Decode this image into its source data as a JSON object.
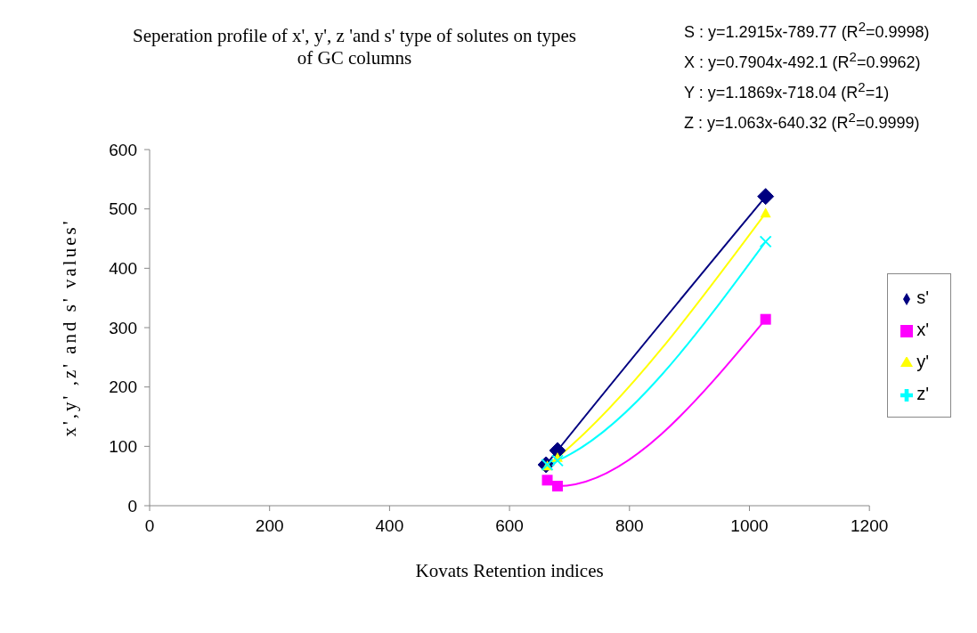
{
  "chart_data": {
    "type": "line",
    "title": "Seperation profile of x', y', z 'and s' type of solutes on types of GC columns",
    "xlabel": "Kovats Retention indices",
    "ylabel": "x',y' ,z' and s' values'",
    "xlim": [
      0,
      1200
    ],
    "xticks": [
      0,
      200,
      400,
      600,
      800,
      1000,
      1200
    ],
    "ylim": [
      0,
      600
    ],
    "yticks": [
      0,
      100,
      200,
      300,
      400,
      500,
      600
    ],
    "grid": false,
    "legend": "right",
    "series": [
      {
        "name": "s'",
        "color": "#000080",
        "marker": "diamond",
        "x": [
          661,
          680,
          1027
        ],
        "values": [
          69,
          93,
          521
        ]
      },
      {
        "name": "x'",
        "color": "#ff00ff",
        "marker": "square",
        "x": [
          663,
          680,
          1027
        ],
        "values": [
          43,
          33,
          314
        ]
      },
      {
        "name": "y'",
        "color": "#ffff00",
        "marker": "triangle",
        "x": [
          663,
          680,
          1027
        ],
        "values": [
          67,
          81,
          493
        ]
      },
      {
        "name": "z'",
        "color": "#00ffff",
        "marker": "cross",
        "x": [
          663,
          680,
          1027
        ],
        "values": [
          69,
          76,
          445
        ]
      }
    ],
    "annotations": [
      "S : y=1.2915x-789.77 (R$^{2}$=0.9998)",
      "X : y=0.7904x-492.1 (R$^{2}$=0.9962)",
      "Y : y=1.1869x-718.04 (R$^{2}$=1)",
      "Z : y=1.063x-640.32 (R$^{2}$=0.9999)"
    ]
  }
}
